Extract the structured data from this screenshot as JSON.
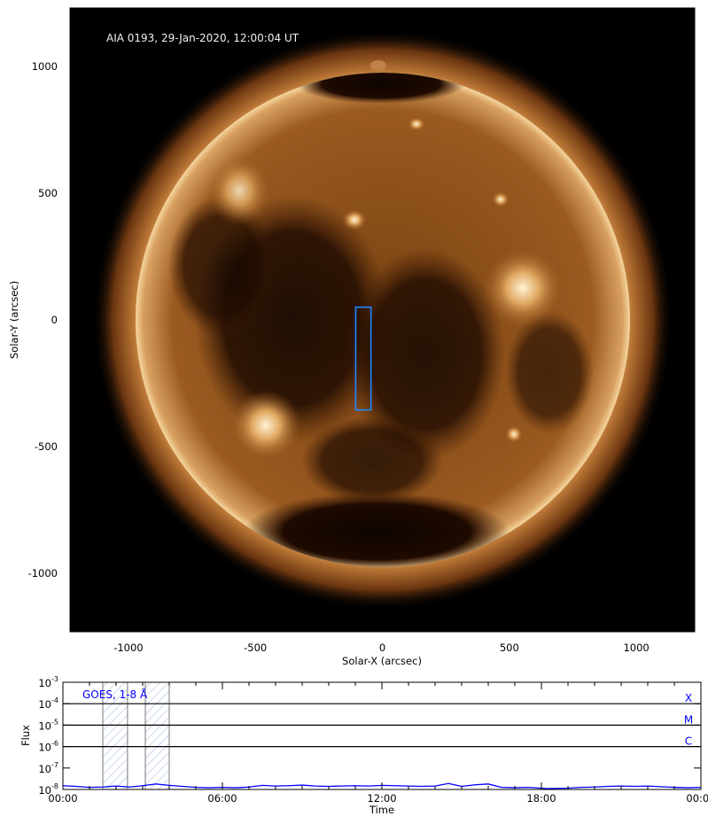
{
  "chart_data": [
    {
      "type": "image",
      "title": "AIA 0193, 29-Jan-2020, 12:00:04 UT",
      "xlabel": "Solar-X (arcsec)",
      "ylabel": "Solar-Y (arcsec)",
      "xlim": [
        -1230,
        1230
      ],
      "ylim": [
        -1230,
        1230
      ],
      "xticks": [
        -1000,
        -500,
        0,
        500,
        1000
      ],
      "yticks": [
        -1000,
        -500,
        0,
        500,
        1000
      ],
      "xtick_labels": [
        "-1000",
        "-500",
        "0",
        "500",
        "1000"
      ],
      "ytick_labels": [
        "-1000",
        "-500",
        "0",
        "500",
        "1000"
      ],
      "minor_tick_step": 100,
      "solar_radius_arcsec": 975,
      "colormap": "sdoaia193",
      "box": {
        "x": [
          -105,
          -45
        ],
        "y": [
          -355,
          50
        ],
        "color": "#1e88ff"
      }
    },
    {
      "type": "line",
      "label": "GOES, 1-8 Å",
      "xlabel": "Time",
      "ylabel": "Flux",
      "xlim": [
        0,
        24
      ],
      "ylim": [
        1e-08,
        0.001
      ],
      "yscale": "log",
      "xtick_labels": [
        "00:00",
        "06:00",
        "12:00",
        "18:00",
        "00:00"
      ],
      "xticks": [
        0,
        6,
        12,
        18,
        24
      ],
      "ytick_labels": [
        "10",
        "10",
        "10",
        "10",
        "10",
        "10"
      ],
      "ytick_exponents": [
        "-8",
        "-7",
        "-6",
        "-5",
        "-4",
        "-3"
      ],
      "yticks": [
        1e-08,
        1e-07,
        1e-06,
        1e-05,
        0.0001,
        0.001
      ],
      "flare_levels": [
        {
          "name": "C",
          "value": 1e-06
        },
        {
          "name": "M",
          "value": 1e-05
        },
        {
          "name": "X",
          "value": 0.0001
        }
      ],
      "highlight_intervals_hours": [
        [
          1.5,
          2.43
        ],
        [
          3.1,
          4.0
        ]
      ],
      "series": [
        {
          "color": "#0000ff",
          "x": [
            0,
            0.5,
            1,
            1.5,
            2,
            2.5,
            3,
            3.5,
            4,
            4.5,
            5,
            5.5,
            6,
            6.5,
            7,
            7.5,
            8,
            8.5,
            9,
            9.5,
            10,
            10.5,
            11,
            11.5,
            12,
            12.5,
            13,
            13.5,
            14,
            14.5,
            15,
            15.5,
            16,
            16.5,
            17,
            17.5,
            18.2,
            19,
            19.5,
            20,
            20.5,
            21,
            21.5,
            22,
            22.5,
            23,
            23.5,
            24
          ],
          "y": [
            1.5e-08,
            1.4e-08,
            1.25e-08,
            1.3e-08,
            1.45e-08,
            1.3e-08,
            1.5e-08,
            1.8e-08,
            1.55e-08,
            1.4e-08,
            1.25e-08,
            1.2e-08,
            1.25e-08,
            1.2e-08,
            1.3e-08,
            1.55e-08,
            1.45e-08,
            1.5e-08,
            1.6e-08,
            1.45e-08,
            1.4e-08,
            1.45e-08,
            1.5e-08,
            1.45e-08,
            1.55e-08,
            1.5e-08,
            1.45e-08,
            1.4e-08,
            1.45e-08,
            1.9e-08,
            1.4e-08,
            1.65e-08,
            1.8e-08,
            1.25e-08,
            1.2e-08,
            1.25e-08,
            1.1e-08,
            1.15e-08,
            1.25e-08,
            1.3e-08,
            1.4e-08,
            1.45e-08,
            1.4e-08,
            1.45e-08,
            1.35e-08,
            1.25e-08,
            1.2e-08,
            1.25e-08
          ]
        }
      ]
    }
  ]
}
